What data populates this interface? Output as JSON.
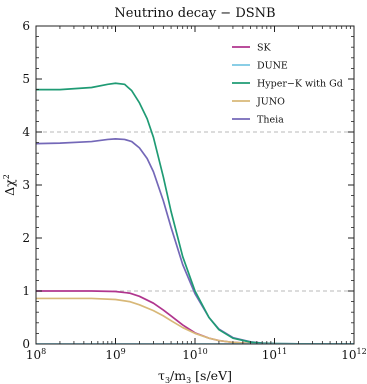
{
  "chart_data": {
    "type": "line",
    "title": "Neutrino decay − DSNB",
    "xlabel_main": "τ",
    "xlabel_sub": "3",
    "xlabel_mid": "/m",
    "xlabel_sub2": "3",
    "xlabel_units": " [s/eV]",
    "ylabel_main": "Δχ",
    "ylabel_sup": "2",
    "x_scale": "log",
    "xlim": [
      100000000.0,
      1000000000000.0
    ],
    "ylim": [
      0,
      6
    ],
    "x_ticks": [
      {
        "value": 100000000.0,
        "base": "10",
        "exp": "8"
      },
      {
        "value": 1000000000.0,
        "base": "10",
        "exp": "9"
      },
      {
        "value": 10000000000.0,
        "base": "10",
        "exp": "10"
      },
      {
        "value": 100000000000.0,
        "base": "10",
        "exp": "11"
      },
      {
        "value": 1000000000000.0,
        "base": "10",
        "exp": "12"
      }
    ],
    "y_ticks": [
      "0",
      "1",
      "2",
      "3",
      "4",
      "5",
      "6"
    ],
    "reference_lines": [
      1,
      4
    ],
    "legend_position": "upper-right",
    "series": [
      {
        "name": "SK",
        "color": "#b0358e",
        "x": [
          100000000.0,
          200000000.0,
          500000000.0,
          1000000000.0,
          1500000000.0,
          2000000000.0,
          3000000000.0,
          4000000000.0,
          5000000000.0,
          7000000000.0,
          10000000000.0,
          15000000000.0,
          20000000000.0,
          30000000000.0,
          50000000000.0,
          100000000000.0,
          1000000000000.0
        ],
        "y": [
          1.0,
          1.0,
          1.0,
          0.99,
          0.96,
          0.9,
          0.77,
          0.64,
          0.53,
          0.36,
          0.21,
          0.11,
          0.065,
          0.03,
          0.01,
          0.002,
          0.0
        ]
      },
      {
        "name": "DUNE",
        "color": "#7ac7e3",
        "x": [
          100000000.0,
          1000000000.0,
          1000000000000.0
        ],
        "y": [
          0.0,
          0.0,
          0.0
        ]
      },
      {
        "name": "Hyper−K with Gd",
        "color": "#1f9b74",
        "x": [
          100000000.0,
          200000000.0,
          500000000.0,
          800000000.0,
          1000000000.0,
          1300000000.0,
          1600000000.0,
          2000000000.0,
          2500000000.0,
          3000000000.0,
          4000000000.0,
          5000000000.0,
          7000000000.0,
          10000000000.0,
          15000000000.0,
          20000000000.0,
          30000000000.0,
          50000000000.0,
          70000000000.0,
          100000000000.0,
          200000000000.0,
          1000000000000.0
        ],
        "y": [
          4.8,
          4.8,
          4.84,
          4.9,
          4.92,
          4.9,
          4.78,
          4.55,
          4.25,
          3.9,
          3.15,
          2.5,
          1.65,
          1.0,
          0.5,
          0.27,
          0.11,
          0.035,
          0.015,
          0.008,
          0.002,
          0.0
        ]
      },
      {
        "name": "JUNO",
        "color": "#d8b878",
        "x": [
          100000000.0,
          200000000.0,
          500000000.0,
          1000000000.0,
          1500000000.0,
          2000000000.0,
          3000000000.0,
          4000000000.0,
          5000000000.0,
          7000000000.0,
          10000000000.0,
          15000000000.0,
          20000000000.0,
          30000000000.0,
          50000000000.0,
          100000000000.0,
          1000000000000.0
        ],
        "y": [
          0.86,
          0.86,
          0.86,
          0.84,
          0.8,
          0.74,
          0.63,
          0.53,
          0.44,
          0.31,
          0.2,
          0.11,
          0.065,
          0.03,
          0.01,
          0.002,
          0.0
        ]
      },
      {
        "name": "Theia",
        "color": "#7468b8",
        "x": [
          100000000.0,
          200000000.0,
          500000000.0,
          800000000.0,
          1000000000.0,
          1300000000.0,
          1600000000.0,
          2000000000.0,
          2500000000.0,
          3000000000.0,
          4000000000.0,
          5000000000.0,
          7000000000.0,
          10000000000.0,
          15000000000.0,
          20000000000.0,
          30000000000.0,
          50000000000.0,
          70000000000.0,
          100000000000.0,
          200000000000.0,
          1000000000000.0
        ],
        "y": [
          3.78,
          3.79,
          3.82,
          3.86,
          3.87,
          3.86,
          3.82,
          3.7,
          3.5,
          3.25,
          2.7,
          2.2,
          1.5,
          0.95,
          0.5,
          0.28,
          0.12,
          0.04,
          0.018,
          0.008,
          0.002,
          0.0
        ]
      }
    ]
  }
}
